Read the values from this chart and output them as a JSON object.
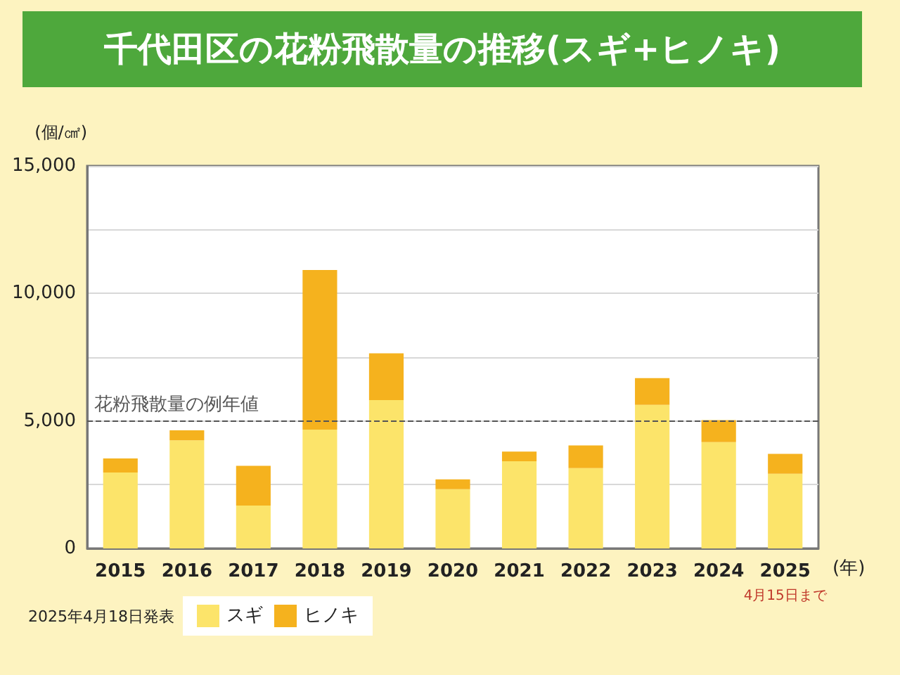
{
  "chart_data": {
    "type": "bar",
    "title": "千代田区の花粉飛散量の推移(スギ+ヒノキ)",
    "ylabel": "(個/㎠)",
    "xlabel": "(年)",
    "categories": [
      "2015",
      "2016",
      "2017",
      "2018",
      "2019",
      "2020",
      "2021",
      "2022",
      "2023",
      "2024",
      "2025"
    ],
    "stacked": true,
    "series": [
      {
        "name": "スギ",
        "color": "#fce46a",
        "values": [
          2980,
          4240,
          1680,
          4660,
          5820,
          2320,
          3420,
          3150,
          5630,
          4170,
          2930
        ]
      },
      {
        "name": "ヒノキ",
        "color": "#f5b21e",
        "values": [
          550,
          390,
          1560,
          6260,
          1830,
          390,
          380,
          890,
          1050,
          860,
          780
        ]
      }
    ],
    "ylim": [
      0,
      15000
    ],
    "yticks": [
      0,
      {
        "value": 2500,
        "label": null
      },
      {
        "value": 5000,
        "label": "5,000"
      },
      {
        "value": 7500,
        "label": null
      },
      {
        "value": 10000,
        "label": "10,000"
      },
      {
        "value": 12500,
        "label": null
      },
      {
        "value": 15000,
        "label": "15,000"
      }
    ],
    "grid": "y",
    "legend": "bottom left",
    "ref_lines": [
      {
        "axis": "y",
        "value": 5000,
        "label": "花粉飛散量の例年値",
        "color": "#555555",
        "line_style": "dashed"
      }
    ],
    "annotations": [
      "4月15日まで",
      "2025年4月18日発表"
    ]
  }
}
